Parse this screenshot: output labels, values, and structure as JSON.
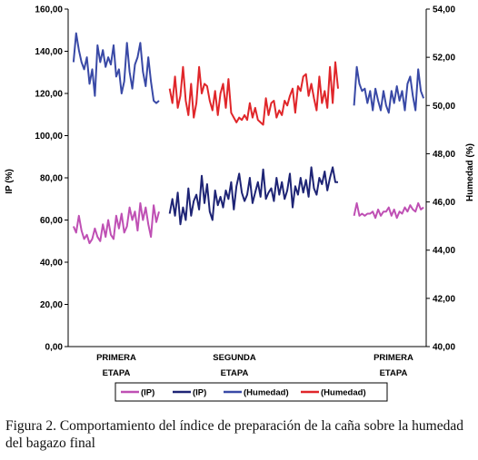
{
  "caption": "Figura 2. Comportamiento del índice de preparación de la caña sobre la humedad del bagazo final",
  "chart_data": {
    "type": "line",
    "title": "",
    "ylabel_left": "IP (%)",
    "ylabel_right": "Humedad (%)",
    "ylim_left": [
      0,
      160
    ],
    "ylim_right": [
      40,
      54
    ],
    "yticks_left": [
      "0,00",
      "20,00",
      "40,00",
      "60,00",
      "80,00",
      "100,00",
      "120,00",
      "140,00",
      "160,00"
    ],
    "yticks_right": [
      "40,00",
      "42,00",
      "44,00",
      "46,00",
      "48,00",
      "50,00",
      "52,00",
      "54,00"
    ],
    "categories": [
      {
        "label": [
          "PRIMERA",
          "ETAPA"
        ]
      },
      {
        "label": [
          "SEGUNDA",
          "ETAPA"
        ]
      },
      {
        "label": [
          "PRIMERA",
          "ETAPA"
        ]
      }
    ],
    "legend": [
      "(IP)",
      "(IP)",
      "(Humedad)",
      "(Humedad)"
    ],
    "colors": {
      "ip_stage1": "#bf50b4",
      "ip_stage2": "#1e2475",
      "hum_stage1": "#3949a6",
      "hum_stage2": "#e0262a"
    },
    "series": [
      {
        "name": "(IP)",
        "color": "#bf50b4",
        "axis": "left",
        "segments": [
          {
            "x": [
              0,
              1,
              2,
              3,
              4,
              5,
              6,
              7,
              8,
              9,
              10,
              11,
              12,
              13,
              14,
              15,
              16,
              17,
              18,
              19,
              20,
              21,
              22,
              23,
              24,
              25,
              26,
              27,
              28,
              29,
              30,
              31,
              32
            ],
            "y": [
              57,
              54,
              62,
              55,
              51,
              53,
              49,
              51,
              56,
              52,
              50,
              58,
              52,
              60,
              53,
              51,
              62,
              56,
              63,
              54,
              57,
              66,
              60,
              64,
              55,
              68,
              60,
              66,
              58,
              52,
              67,
              59,
              64
            ]
          },
          {
            "x": [
              105,
              106,
              107,
              108,
              109,
              110,
              111,
              112,
              113,
              114,
              115,
              116,
              117,
              118,
              119,
              120,
              121,
              122,
              123,
              124,
              125,
              126,
              127,
              128,
              129,
              130,
              131
            ],
            "y": [
              62,
              68,
              62,
              63,
              62,
              63,
              63,
              64,
              61,
              65,
              62,
              64,
              64,
              66,
              62,
              65,
              61,
              64,
              63,
              66,
              64,
              67,
              65,
              64,
              68,
              65,
              66
            ]
          }
        ]
      },
      {
        "name": "(IP)",
        "color": "#1e2475",
        "axis": "left",
        "segments": [
          {
            "x": [
              36,
              37,
              38,
              39,
              40,
              41,
              42,
              43,
              44,
              45,
              46,
              47,
              48,
              49,
              50,
              51,
              52,
              53,
              54,
              55,
              56,
              57,
              58,
              59,
              60,
              61,
              62,
              63,
              64,
              65,
              66,
              67,
              68,
              69,
              70,
              71,
              72,
              73,
              74,
              75,
              76,
              77,
              78,
              79,
              80,
              81,
              82,
              83,
              84,
              85,
              86,
              87,
              88,
              89,
              90,
              91,
              92,
              93,
              94,
              95,
              96,
              97,
              98,
              99
            ],
            "y": [
              63,
              70,
              62,
              73,
              58,
              66,
              60,
              75,
              62,
              69,
              72,
              65,
              81,
              68,
              77,
              64,
              60,
              74,
              67,
              71,
              66,
              74,
              70,
              78,
              65,
              76,
              82,
              73,
              69,
              72,
              80,
              68,
              73,
              78,
              71,
              84,
              70,
              73,
              75,
              69,
              80,
              72,
              78,
              70,
              74,
              82,
              66,
              76,
              72,
              80,
              73,
              79,
              71,
              85,
              75,
              72,
              80,
              77,
              83,
              74,
              80,
              85,
              78,
              78
            ]
          }
        ]
      },
      {
        "name": "(Humedad)",
        "color": "#3949a6",
        "axis": "right",
        "segments": [
          {
            "x": [
              0,
              1,
              2,
              3,
              4,
              5,
              6,
              7,
              8,
              9,
              10,
              11,
              12,
              13,
              14,
              15,
              16,
              17,
              18,
              19,
              20,
              21,
              22,
              23,
              24,
              25,
              26,
              27,
              28,
              29,
              30,
              31,
              32
            ],
            "y": [
              51.8,
              53.0,
              52.3,
              51.8,
              51.5,
              52.0,
              50.9,
              51.5,
              50.4,
              52.5,
              51.8,
              52.3,
              51.6,
              52.0,
              51.7,
              52.5,
              51.2,
              51.5,
              50.5,
              51.0,
              52.6,
              51.4,
              50.7,
              51.7,
              52.0,
              52.6,
              51.4,
              50.8,
              52.0,
              51.0,
              50.2,
              50.1,
              50.2
            ]
          },
          {
            "x": [
              105,
              106,
              107,
              108,
              109,
              110,
              111,
              112,
              113,
              114,
              115,
              116,
              117,
              118,
              119,
              120,
              121,
              122,
              123,
              124,
              125,
              126,
              127,
              128,
              129,
              130,
              131
            ],
            "y": [
              50.0,
              51.6,
              50.9,
              50.6,
              50.7,
              50.1,
              50.6,
              49.8,
              50.7,
              50.2,
              49.8,
              50.6,
              50.0,
              49.7,
              50.6,
              50.1,
              50.8,
              50.2,
              50.6,
              49.8,
              50.9,
              51.2,
              50.4,
              49.8,
              51.5,
              50.6,
              50.3
            ]
          }
        ]
      },
      {
        "name": "(Humedad)",
        "color": "#e0262a",
        "axis": "right",
        "segments": [
          {
            "x": [
              36,
              37,
              38,
              39,
              40,
              41,
              42,
              43,
              44,
              45,
              46,
              47,
              48,
              49,
              50,
              51,
              52,
              53,
              54,
              55,
              56,
              57,
              58,
              59,
              60,
              61,
              62,
              63,
              64,
              65,
              66,
              67,
              68,
              69,
              70,
              71,
              72,
              73,
              74,
              75,
              76,
              77,
              78,
              79,
              80,
              81,
              82,
              83,
              84,
              85,
              86,
              87,
              88,
              89,
              90,
              91,
              92,
              93,
              94,
              95,
              96,
              97,
              98,
              99
            ],
            "y": [
              50.7,
              50.1,
              51.2,
              49.9,
              50.4,
              51.6,
              50.2,
              49.6,
              50.9,
              49.5,
              50.1,
              51.6,
              50.5,
              50.9,
              50.8,
              50.2,
              49.8,
              50.6,
              49.6,
              50.5,
              50.9,
              49.9,
              51.1,
              49.7,
              49.5,
              49.3,
              49.5,
              49.4,
              49.6,
              49.4,
              50.1,
              49.5,
              49.9,
              49.4,
              49.3,
              49.2,
              50.3,
              49.6,
              50.1,
              50.2,
              49.5,
              49.8,
              49.6,
              50.2,
              50.0,
              50.4,
              50.7,
              49.7,
              50.8,
              50.6,
              51.2,
              51.3,
              50.4,
              50.9,
              50.3,
              49.8,
              51.2,
              50.1,
              50.6,
              49.9,
              51.6,
              50.1,
              51.8,
              50.7
            ]
          }
        ]
      }
    ],
    "grid": false,
    "legend_position": "bottom"
  }
}
